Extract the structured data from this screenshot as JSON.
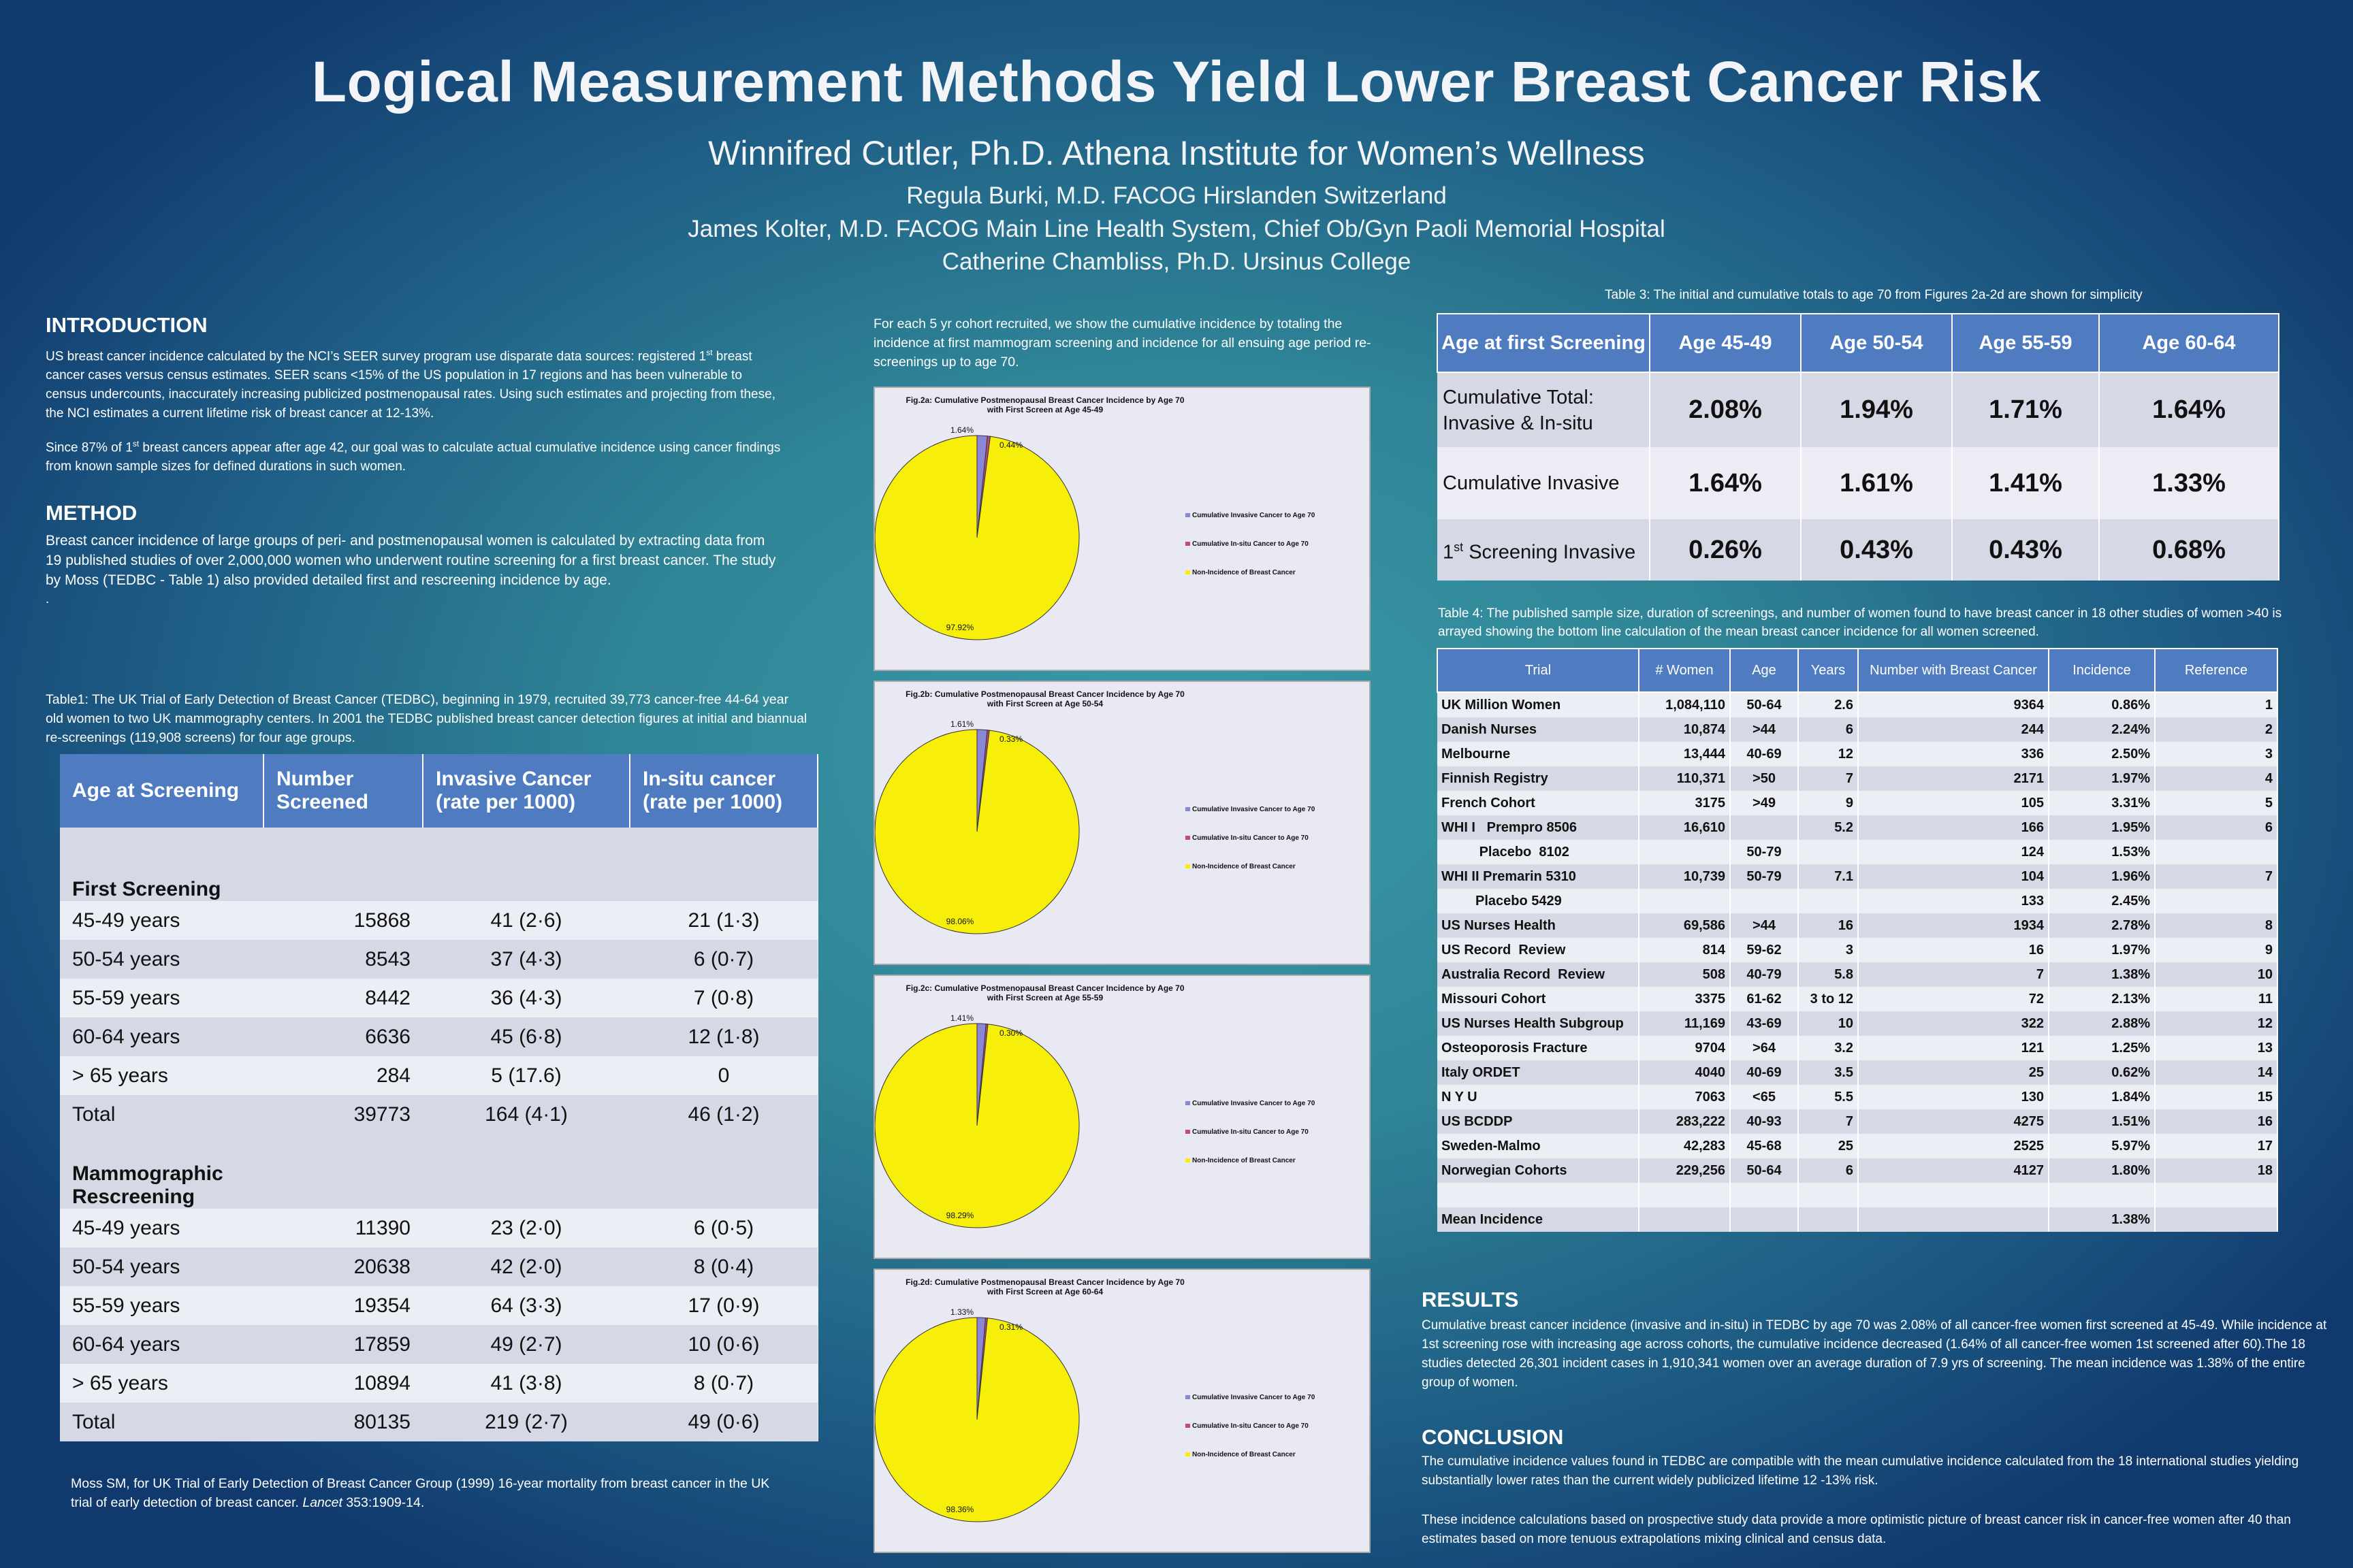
{
  "header": {
    "title": "Logical Measurement Methods Yield Lower Breast Cancer Risk",
    "subtitle": "Winnifred Cutler, Ph.D. Athena Institute for Women’s Wellness",
    "authors": [
      "Regula Burki, M.D. FACOG Hirslanden Switzerland",
      "James Kolter, M.D. FACOG Main Line Health System, Chief Ob/Gyn Paoli Memorial Hospital",
      "Catherine Chambliss, Ph.D. Ursinus College"
    ]
  },
  "intro": {
    "heading": "INTRODUCTION",
    "p1a": "US breast cancer incidence calculated by the NCI’s SEER survey program use disparate data sources: registered 1",
    "p1sup": "st",
    "p1b": " breast cancer cases versus census estimates. SEER scans <15% of the US population in 17 regions and has been vulnerable to census undercounts, inaccurately increasing publicized postmenopausal rates. Using such estimates and projecting from these, the NCI estimates a current lifetime risk of breast cancer at 12-13%.",
    "p2a": "Since 87% of 1",
    "p2sup": "st",
    "p2b": " breast cancers appear after age 42, our goal was to calculate actual cumulative incidence using cancer findings from known sample sizes for defined durations in such women."
  },
  "method": {
    "heading": "METHOD",
    "p1": "Breast cancer incidence of large groups of peri- and postmenopausal women is calculated by extracting data from 19 published studies of over 2,000,000 women who underwent routine screening for a first breast cancer. The study by Moss (TEDBC - Table 1) also provided detailed first and rescreening incidence by age.",
    "dot": "."
  },
  "table1": {
    "caption": "Table1: The UK Trial of Early Detection of Breast Cancer (TEDBC), beginning in 1979, recruited 39,773 cancer-free 44-64 year old women to two UK mammography centers. In 2001 the TEDBC published breast cancer detection figures at initial and biannual re-screenings (119,908 screens) for four age groups.",
    "headers": [
      "Age at Screening",
      "Number Screened",
      "Invasive Cancer (rate per 1000)",
      "In-situ cancer (rate per 1000)"
    ],
    "section1": "First Screening",
    "rows1": [
      [
        "45-49 years",
        "15868",
        "41 (2·6)",
        "21 (1·3)"
      ],
      [
        "50-54 years",
        "8543",
        "37 (4·3)",
        "6 (0·7)"
      ],
      [
        "55-59 years",
        "8442",
        "36 (4·3)",
        "7 (0·8)"
      ],
      [
        "60-64 years",
        "6636",
        "45 (6·8)",
        "12 (1·8)"
      ],
      [
        "> 65 years",
        "284",
        "5 (17.6)",
        "0"
      ],
      [
        "Total",
        "39773",
        "164 (4·1)",
        "46 (1·2)"
      ]
    ],
    "section2": "Mammographic Rescreening",
    "rows2": [
      [
        "45-49 years",
        "11390",
        "23 (2·0)",
        "6 (0·5)"
      ],
      [
        "50-54 years",
        "20638",
        "42 (2·0)",
        "8 (0·4)"
      ],
      [
        "55-59 years",
        "19354",
        "64 (3·3)",
        "17 (0·9)"
      ],
      [
        "60-64 years",
        "17859",
        "49 (2·7)",
        "10 (0·6)"
      ],
      [
        "> 65 years",
        "10894",
        "41 (3·8)",
        "8 (0·7)"
      ],
      [
        "Total",
        "80135",
        "219 (2·7)",
        "49 (0·6)"
      ]
    ],
    "reference_a": "Moss  SM, for UK Trial of Early Detection of Breast Cancer Group (1999) 16-year mortality from breast cancer in the UK trial of early detection of breast cancer. ",
    "reference_italic": "Lancet",
    "reference_b": " 353:1909-14."
  },
  "middle": {
    "intro": "For  each 5 yr  cohort recruited, we show the cumulative incidence by totaling the incidence at first mammogram screening and incidence for all ensuing age period re-screenings up  to age 70."
  },
  "chart_data": [
    {
      "type": "pie",
      "title": "Fig.2a: Cumulative Postmenopausal Breast Cancer Incidence by Age 70",
      "subtitle": "with First Screen at  Age 45-49",
      "categories": [
        "Cumulative Invasive Cancer to Age 70",
        "Cumulative In-situ Cancer to Age 70",
        "Non-Incidence of Breast Cancer"
      ],
      "values": [
        1.64,
        0.44,
        97.92
      ],
      "labels": [
        "1.64%",
        "0.44%",
        "97.92%"
      ],
      "colors": [
        "#8a86d8",
        "#c04a7a",
        "#f7ef0a"
      ],
      "legend": "right"
    },
    {
      "type": "pie",
      "title": "Fig.2b: Cumulative Postmenopausal Breast Cancer Incidence by Age 70",
      "subtitle": "with First Screen at Age 50-54",
      "categories": [
        "Cumulative Invasive Cancer to Age 70",
        "Cumulative In-situ Cancer to Age 70",
        "Non-Incidence of Breast Cancer"
      ],
      "values": [
        1.61,
        0.33,
        98.06
      ],
      "labels": [
        "1.61%",
        "0.33%",
        "98.06%"
      ],
      "colors": [
        "#8a86d8",
        "#c04a7a",
        "#f7ef0a"
      ],
      "legend": "right"
    },
    {
      "type": "pie",
      "title": "Fig.2c: Cumulative Postmenopausal Breast Cancer Incidence by Age 70",
      "subtitle": "with First Screen at Age 55-59",
      "categories": [
        "Cumulative Invasive Cancer to Age 70",
        "Cumulative In-situ Cancer to Age 70",
        "Non-Incidence of Breast Cancer"
      ],
      "values": [
        1.41,
        0.3,
        98.29
      ],
      "labels": [
        "1.41%",
        "0.30%",
        "98.29%"
      ],
      "colors": [
        "#8a86d8",
        "#c04a7a",
        "#f7ef0a"
      ],
      "legend": "right"
    },
    {
      "type": "pie",
      "title": "Fig.2d: Cumulative Postmenopausal Breast Cancer Incidence by Age 70",
      "subtitle": "with First Screen at Age 60-64",
      "categories": [
        "Cumulative Invasive Cancer to Age 70",
        "Cumulative In-situ Cancer to Age 70",
        "Non-Incidence of Breast Cancer"
      ],
      "values": [
        1.33,
        0.31,
        98.36
      ],
      "labels": [
        "1.33%",
        "0.31%",
        "98.36%"
      ],
      "colors": [
        "#8a86d8",
        "#c04a7a",
        "#f7ef0a"
      ],
      "legend": "right"
    }
  ],
  "table3": {
    "caption": "Table 3: The initial and cumulative totals to age 70 from Figures 2a-2d are shown for simplicity",
    "headers": [
      "Age at first Screening",
      "Age 45-49",
      "Age 50-54",
      "Age 55-59",
      "Age 60-64"
    ],
    "row1": {
      "label": "Cumulative Total: Invasive & In-situ",
      "values": [
        "2.08%",
        "1.94%",
        "1.71%",
        "1.64%"
      ]
    },
    "row2": {
      "label": "Cumulative Invasive",
      "values": [
        "1.64%",
        "1.61%",
        "1.41%",
        "1.33%"
      ]
    },
    "row3": {
      "label_a": "1",
      "label_sup": "st",
      "label_b": " Screening Invasive",
      "values": [
        "0.26%",
        "0.43%",
        "0.43%",
        "0.68%"
      ]
    }
  },
  "table4": {
    "caption": "Table 4: The published sample size, duration of screenings, and number of women found to have breast cancer in 18 other studies of women >40 is arrayed showing the bottom line calculation of the mean breast cancer incidence for all women screened.",
    "headers": [
      "Trial",
      "# Women",
      "Age",
      "Years",
      "Number with  Breast Cancer",
      "Incidence",
      "Reference"
    ],
    "rows": [
      [
        "UK Million Women",
        "1,084,110",
        "50-64",
        "2.6",
        "9364",
        "0.86%",
        "1"
      ],
      [
        "Danish Nurses",
        "10,874",
        ">44",
        "6",
        "244",
        "2.24%",
        "2"
      ],
      [
        "Melbourne",
        "13,444",
        "40-69",
        "12",
        "336",
        "2.50%",
        "3"
      ],
      [
        "Finnish Registry",
        "110,371",
        ">50",
        "7",
        "2171",
        "1.97%",
        "4"
      ],
      [
        "French Cohort",
        "3175",
        ">49",
        "9",
        "105",
        "3.31%",
        "5"
      ],
      [
        "WHI I   Prempro 8506",
        "16,610",
        "",
        "5.2",
        "166",
        "1.95%",
        "6"
      ],
      [
        "          Placebo  8102",
        "",
        "50-79",
        "",
        "124",
        "1.53%",
        ""
      ],
      [
        "WHI II Premarin 5310",
        "10,739",
        "50-79",
        "7.1",
        "104",
        "1.96%",
        "7"
      ],
      [
        "         Placebo 5429",
        "",
        "",
        "",
        "133",
        "2.45%",
        ""
      ],
      [
        "US Nurses Health",
        "69,586",
        ">44",
        "16",
        "1934",
        "2.78%",
        "8"
      ],
      [
        "US Record  Review",
        "814",
        "59-62",
        "3",
        "16",
        "1.97%",
        "9"
      ],
      [
        "Australia Record  Review",
        "508",
        "40-79",
        "5.8",
        "7",
        "1.38%",
        "10"
      ],
      [
        "Missouri Cohort",
        "3375",
        "61-62",
        "3 to 12",
        "72",
        "2.13%",
        "11"
      ],
      [
        "US Nurses Health Subgroup",
        "11,169",
        "43-69",
        "10",
        "322",
        "2.88%",
        "12"
      ],
      [
        "Osteoporosis Fracture",
        "9704",
        ">64",
        "3.2",
        "121",
        "1.25%",
        "13"
      ],
      [
        "Italy ORDET",
        "4040",
        "40-69",
        "3.5",
        "25",
        "0.62%",
        "14"
      ],
      [
        "N Y U",
        "7063",
        "<65",
        "5.5",
        "130",
        "1.84%",
        "15"
      ],
      [
        "US BCDDP",
        "283,222",
        "40-93",
        "7",
        "4275",
        "1.51%",
        "16"
      ],
      [
        "Sweden-Malmo",
        "42,283",
        "45-68",
        "25",
        "2525",
        "5.97%",
        "17"
      ],
      [
        "Norwegian Cohorts",
        "229,256",
        "50-64",
        "6",
        "4127",
        "1.80%",
        "18"
      ],
      [
        "",
        "",
        "",
        "",
        "",
        "",
        ""
      ],
      [
        "Mean Incidence",
        "",
        "",
        "",
        "",
        "1.38%",
        ""
      ]
    ]
  },
  "results": {
    "heading": "RESULTS",
    "text": "Cumulative breast cancer incidence (invasive and in-situ) in TEDBC by age 70 was 2.08% of all cancer-free women first screened at 45-49. While incidence at 1st screening rose with increasing age across cohorts, the cumulative incidence decreased (1.64% of all cancer-free women 1st screened after 60).The 18 studies detected 26,301 incident cases in 1,910,341 women over an average duration of 7.9 yrs of screening.  The mean incidence was 1.38% of the entire group of women."
  },
  "conclusion": {
    "heading": "CONCLUSION",
    "p1": "The cumulative incidence values found in TEDBC are compatible with the mean cumulative incidence calculated from the 18 international studies yielding substantially lower rates than the current widely publicized lifetime 12 -13% risk.",
    "p2": "These incidence calculations based on prospective study data provide a more optimistic picture of breast cancer risk in cancer-free women after 40 than estimates based on more tenuous extrapolations mixing clinical and census data."
  }
}
